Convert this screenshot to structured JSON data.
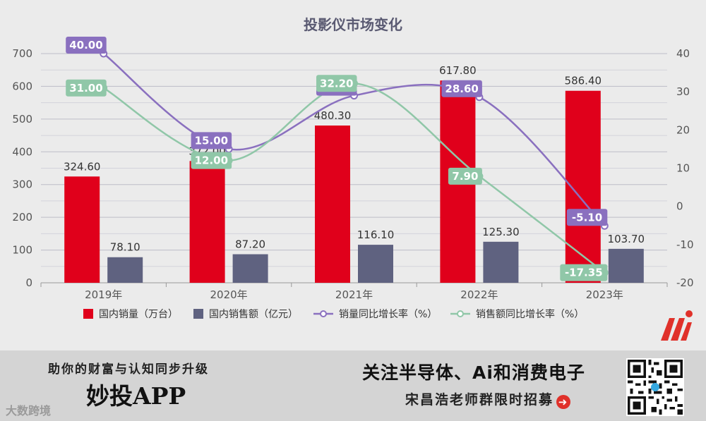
{
  "chart_data": {
    "type": "bar-line-combo",
    "title": "投影仪市场变化",
    "categories": [
      "2019年",
      "2020年",
      "2021年",
      "2022年",
      "2023年"
    ],
    "y_left": {
      "ylim": [
        0,
        700
      ],
      "ticks": [
        0,
        100,
        200,
        300,
        400,
        500,
        600,
        700
      ]
    },
    "y_right": {
      "ylim": [
        -20,
        40
      ],
      "ticks": [
        -20,
        -10,
        0,
        10,
        20,
        30,
        40
      ]
    },
    "grid": true,
    "legend_position": "bottom",
    "bar_series": [
      {
        "name": "国内销量（万台）",
        "color": "#e0001b",
        "values": [
          324.6,
          372.0,
          480.3,
          617.8,
          586.4
        ],
        "labels": [
          "324.60",
          "372.00",
          "480.30",
          "617.80",
          "586.40"
        ]
      },
      {
        "name": "国内销售额（亿元）",
        "color": "#5f6280",
        "values": [
          78.1,
          87.2,
          116.1,
          125.3,
          103.7
        ],
        "labels": [
          "78.10",
          "87.20",
          "116.10",
          "125.30",
          "103.70"
        ]
      }
    ],
    "line_series": [
      {
        "name": "销量同比增长率（%）",
        "color": "#8a70bf",
        "values": [
          40.0,
          15.0,
          29.0,
          28.6,
          -5.1
        ],
        "labels": [
          "40.00",
          "15.00",
          "29.00",
          "28.60",
          "-5.10"
        ]
      },
      {
        "name": "销售额同比增长率（%）",
        "color": "#90c7a8",
        "values": [
          31.0,
          12.0,
          32.2,
          7.9,
          -17.35
        ],
        "labels": [
          "31.00",
          "12.00",
          "32.20",
          "7.90",
          "-17.35"
        ]
      }
    ]
  },
  "footer": {
    "left_tagline": "助你的财富与认知同步升级",
    "left_brand": "妙投APP",
    "watermark": "大数跨境",
    "right_headline": "关注半导体、Ai和消费电子",
    "right_sub": "宋昌浩老师群限时招募",
    "arrow_glyph": "➜"
  }
}
